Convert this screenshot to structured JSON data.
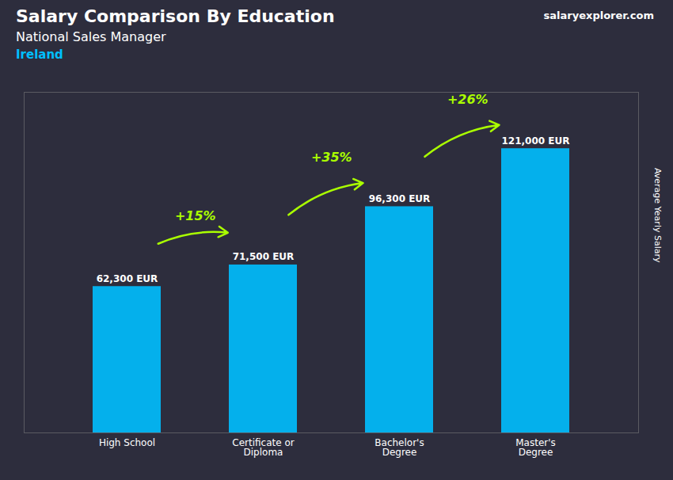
{
  "chart_data": {
    "type": "bar",
    "title": "Salary Comparison By Education",
    "subtitle": "National Sales Manager",
    "ylabel": "Average Yearly Salary",
    "categories": [
      "High School",
      "Certificate or\nDiploma",
      "Bachelor's\nDegree",
      "Master's\nDegree"
    ],
    "values": [
      62300,
      71500,
      96300,
      121000
    ],
    "value_labels": [
      "62,300 EUR",
      "71,500 EUR",
      "96,300 EUR",
      "121,000 EUR"
    ],
    "data_labels": true,
    "color": "#00BFFF",
    "ylim": [
      0,
      145000
    ],
    "tick_labels": "x",
    "annotations": [
      {
        "text": "Ireland"
      },
      {
        "text": "salaryexplorer.com"
      },
      {
        "text": "+15%",
        "from": "High School",
        "to": "Certificate or\nDiploma"
      },
      {
        "text": "+35%",
        "from": "Certificate or\nDiploma",
        "to": "Bachelor's\nDegree"
      },
      {
        "text": "+26%",
        "from": "Bachelor's\nDegree",
        "to": "Master's\nDegree"
      }
    ]
  }
}
